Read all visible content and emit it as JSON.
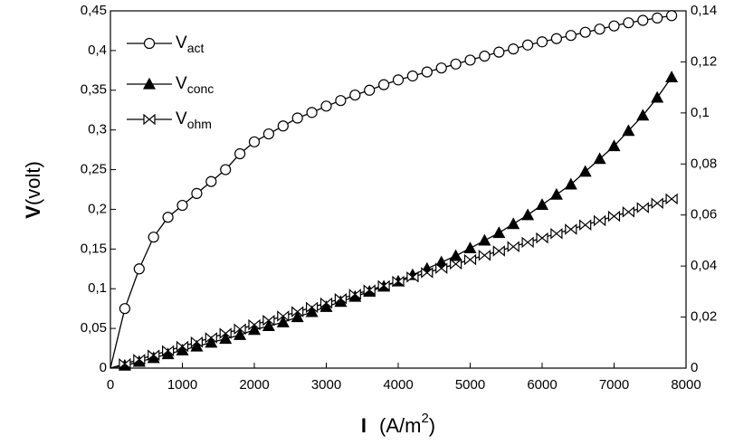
{
  "chart_data": {
    "type": "line",
    "ylabel_parts": [
      "V",
      "(volt)"
    ],
    "xlabel_parts": [
      "I",
      "(A/m",
      "2",
      ")"
    ],
    "x": [
      0,
      200,
      400,
      600,
      800,
      1000,
      1200,
      1400,
      1600,
      1800,
      2000,
      2200,
      2400,
      2600,
      2800,
      3000,
      3200,
      3400,
      3600,
      3800,
      4000,
      4200,
      4400,
      4600,
      4800,
      5000,
      5200,
      5400,
      5600,
      5800,
      6000,
      6200,
      6400,
      6600,
      6800,
      7000,
      7200,
      7400,
      7600,
      7800
    ],
    "series": [
      {
        "name": "V",
        "subscript": "act",
        "color": "#000000",
        "marker": "circle",
        "marker_fill": "#ffffff",
        "values": [
          0,
          0.075,
          0.125,
          0.165,
          0.19,
          0.205,
          0.22,
          0.235,
          0.25,
          0.27,
          0.285,
          0.295,
          0.305,
          0.315,
          0.322,
          0.33,
          0.337,
          0.344,
          0.35,
          0.357,
          0.363,
          0.368,
          0.373,
          0.378,
          0.383,
          0.388,
          0.393,
          0.398,
          0.402,
          0.407,
          0.411,
          0.415,
          0.419,
          0.423,
          0.427,
          0.431,
          0.435,
          0.438,
          0.441,
          0.444
        ]
      },
      {
        "name": "V",
        "subscript": "conc",
        "color": "#000000",
        "marker": "triangle",
        "marker_fill": "#000000",
        "axis": "y2",
        "values": [
          0,
          0.001,
          0.0025,
          0.004,
          0.0055,
          0.007,
          0.0085,
          0.01,
          0.0115,
          0.013,
          0.015,
          0.0165,
          0.018,
          0.02,
          0.022,
          0.024,
          0.026,
          0.028,
          0.03,
          0.032,
          0.034,
          0.0365,
          0.039,
          0.0415,
          0.044,
          0.047,
          0.05,
          0.053,
          0.0565,
          0.06,
          0.064,
          0.068,
          0.072,
          0.077,
          0.082,
          0.087,
          0.093,
          0.099,
          0.106,
          0.114
        ]
      },
      {
        "name": "V",
        "subscript": "ohm",
        "color": "#000000",
        "marker": "bowtie",
        "marker_fill": "#ffffff",
        "axis": "y2",
        "values": [
          0,
          0.0017,
          0.0034,
          0.0051,
          0.0068,
          0.0085,
          0.0102,
          0.0119,
          0.0136,
          0.0153,
          0.017,
          0.0187,
          0.0204,
          0.0221,
          0.0238,
          0.0255,
          0.0272,
          0.0289,
          0.0306,
          0.0323,
          0.034,
          0.0357,
          0.0374,
          0.0391,
          0.0408,
          0.0425,
          0.0442,
          0.0459,
          0.0476,
          0.0493,
          0.051,
          0.0527,
          0.0544,
          0.0561,
          0.0578,
          0.0595,
          0.0612,
          0.0629,
          0.0646,
          0.0663
        ]
      }
    ],
    "xlim": [
      0,
      8000
    ],
    "xticks": [
      0,
      1000,
      2000,
      3000,
      4000,
      5000,
      6000,
      7000,
      8000
    ],
    "ylim": [
      0,
      0.45
    ],
    "yticks": [
      0,
      {
        "value": 0.05,
        "label": "0,05"
      },
      {
        "value": 0.1,
        "label": "0,1"
      },
      {
        "value": 0.15,
        "label": "0,15"
      },
      {
        "value": 0.2,
        "label": "0,2"
      },
      {
        "value": 0.25,
        "label": "0,25"
      },
      {
        "value": 0.3,
        "label": "0,3"
      },
      {
        "value": 0.35,
        "label": "0,35"
      },
      {
        "value": 0.4,
        "label": "0,4"
      },
      {
        "value": 0.45,
        "label": "0,45"
      }
    ],
    "y2lim": [
      0,
      0.14
    ],
    "y2ticks": [
      0,
      {
        "value": 0.02,
        "label": "0,02"
      },
      {
        "value": 0.04,
        "label": "0,04"
      },
      {
        "value": 0.06,
        "label": "0,06"
      },
      {
        "value": 0.08,
        "label": "0,08"
      },
      {
        "value": 0.1,
        "label": "0,1"
      },
      {
        "value": 0.12,
        "label": "0,12"
      },
      {
        "value": 0.14,
        "label": "0,14"
      }
    ],
    "legend": "upper-left",
    "grid": false
  }
}
